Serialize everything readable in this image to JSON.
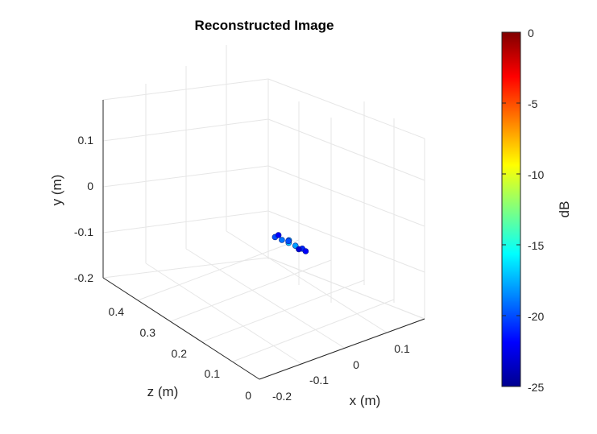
{
  "chart_data": {
    "type": "scatter",
    "title": "Reconstructed Image",
    "xlabel": "x (m)",
    "ylabel": "y (m)",
    "zlabel": "z (m)",
    "x_ticks": [
      "-0.2",
      "-0.1",
      "0",
      "0.1"
    ],
    "y_ticks": [
      "-0.2",
      "-0.1",
      "0",
      "0.1"
    ],
    "z_ticks": [
      "0",
      "0.1",
      "0.2",
      "0.3",
      "0.4"
    ],
    "xlim": [
      -0.25,
      0.2
    ],
    "ylim": [
      -0.2,
      0.2
    ],
    "zlim": [
      0,
      0.5
    ],
    "grid": true,
    "colormap": "jet",
    "colorbar": {
      "label": "dB",
      "ticks": [
        "0",
        "-5",
        "-10",
        "-15",
        "-20",
        "-25"
      ],
      "range": [
        -25,
        0
      ]
    },
    "points": [
      {
        "x": -0.02,
        "y": -0.05,
        "z": 0.22,
        "db": -20
      },
      {
        "x": -0.01,
        "y": -0.055,
        "z": 0.21,
        "db": -19
      },
      {
        "x": 0.0,
        "y": -0.06,
        "z": 0.2,
        "db": -17
      },
      {
        "x": 0.01,
        "y": -0.065,
        "z": 0.19,
        "db": -18
      },
      {
        "x": 0.02,
        "y": -0.07,
        "z": 0.18,
        "db": -21
      },
      {
        "x": -0.015,
        "y": -0.045,
        "z": 0.215,
        "db": -22
      },
      {
        "x": 0.005,
        "y": -0.058,
        "z": 0.205,
        "db": -16
      },
      {
        "x": 0.015,
        "y": -0.072,
        "z": 0.185,
        "db": -23
      },
      {
        "x": 0.025,
        "y": -0.075,
        "z": 0.175,
        "db": -22
      },
      {
        "x": -0.005,
        "y": -0.052,
        "z": 0.195,
        "db": -20
      }
    ]
  }
}
